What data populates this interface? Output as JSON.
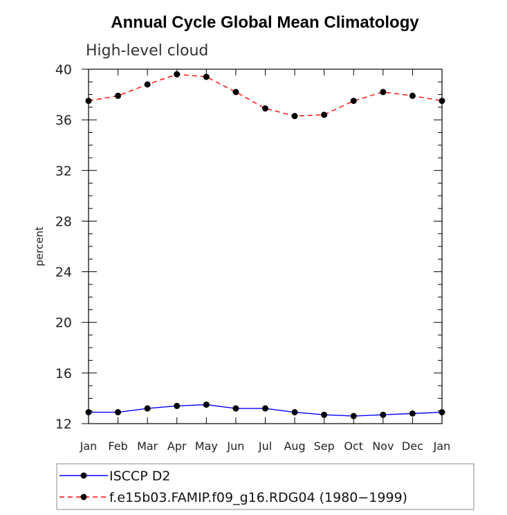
{
  "chart_data": {
    "type": "line",
    "title": "Annual Cycle Global Mean Climatology",
    "subtitle": "High-level cloud",
    "xlabel": "",
    "ylabel": "percent",
    "categories": [
      "Jan",
      "Feb",
      "Mar",
      "Apr",
      "May",
      "Jun",
      "Jul",
      "Aug",
      "Sep",
      "Oct",
      "Nov",
      "Dec",
      "Jan"
    ],
    "ylim": [
      12,
      40
    ],
    "yticks": [
      12,
      16,
      20,
      24,
      28,
      32,
      36,
      40
    ],
    "series": [
      {
        "name": "ISCCP D2",
        "color": "#0000ff",
        "line_style": "solid",
        "marker": "filled-circle",
        "values": [
          12.9,
          12.9,
          13.2,
          13.4,
          13.5,
          13.2,
          13.2,
          12.9,
          12.7,
          12.6,
          12.7,
          12.8,
          12.9
        ]
      },
      {
        "name": "f.e15b03.FAMIP.f09_g16.RDG04 (1980−1999)",
        "color": "#ff0000",
        "line_style": "dashed",
        "marker": "filled-circle",
        "values": [
          37.5,
          37.9,
          38.8,
          39.6,
          39.4,
          38.2,
          36.9,
          36.3,
          36.4,
          37.5,
          38.2,
          37.9,
          37.5
        ]
      }
    ],
    "grid": false,
    "legend_position": "bottom"
  }
}
